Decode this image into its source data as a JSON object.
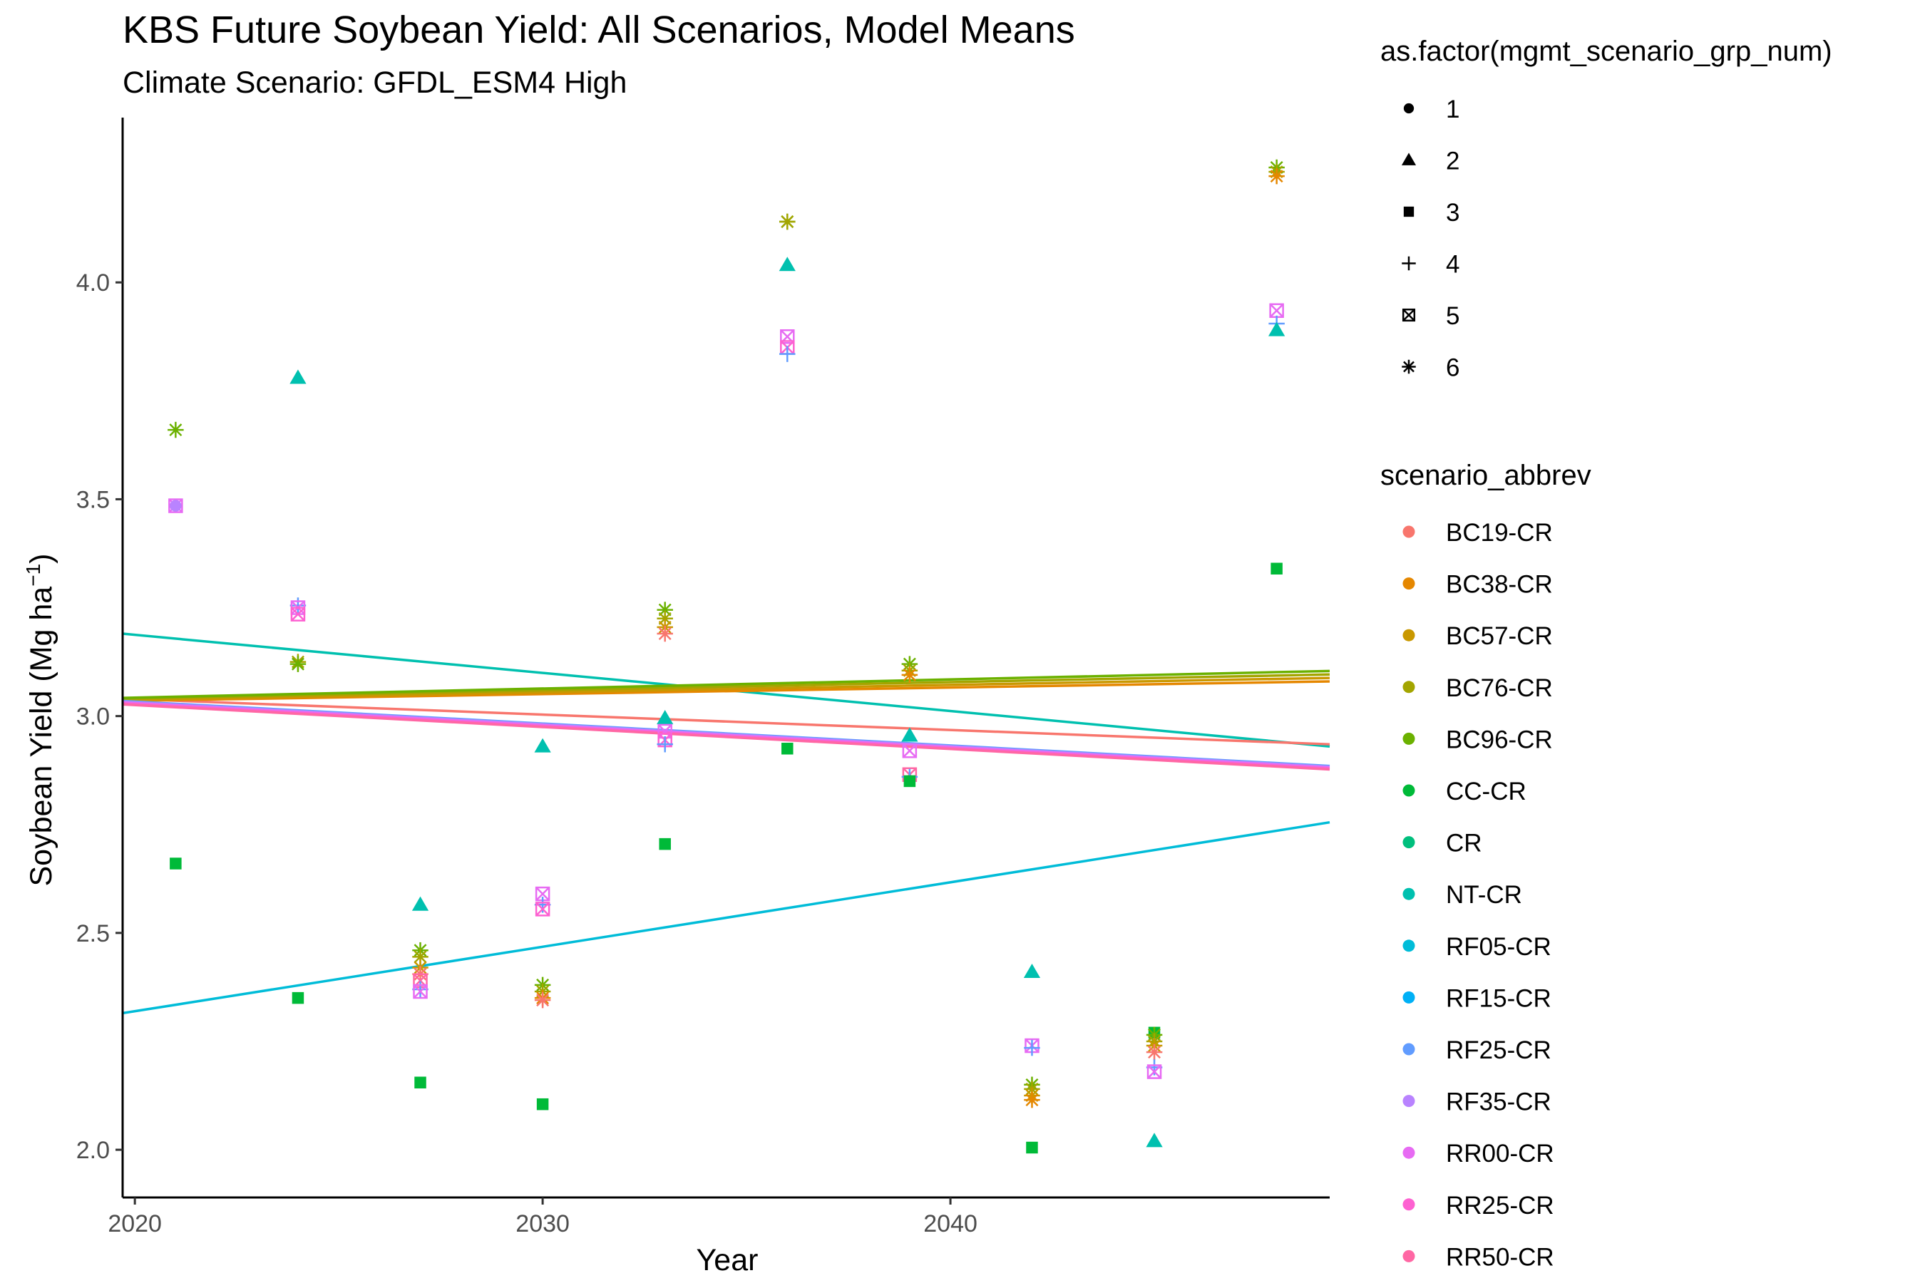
{
  "chart_data": {
    "type": "scatter",
    "title": "KBS  Future Soybean Yield: All Scenarios, Model Means",
    "subtitle": "Climate Scenario: GFDL_ESM4 High",
    "xlabel": "Year",
    "ylabel_main": "Soybean Yield (Mg ha",
    "ylabel_sup": "−1",
    "ylabel_close": ")",
    "xlim": [
      2019.7,
      2049.3
    ],
    "ylim": [
      1.89,
      4.38
    ],
    "x_ticks": [
      2020,
      2030,
      2040
    ],
    "y_ticks": [
      {
        "value": 2.0,
        "label": "2.0"
      },
      {
        "value": 2.5,
        "label": "2.5"
      },
      {
        "value": 3.0,
        "label": "3.0"
      },
      {
        "value": 3.5,
        "label": "3.5"
      },
      {
        "value": 4.0,
        "label": "4.0"
      }
    ],
    "grid": false,
    "legend_position": "right",
    "shape_legend": {
      "title": "as.factor(mgmt_scenario_grp_num)",
      "items": [
        {
          "label": "1",
          "shape": "circle"
        },
        {
          "label": "2",
          "shape": "triangle"
        },
        {
          "label": "3",
          "shape": "square"
        },
        {
          "label": "4",
          "shape": "plus"
        },
        {
          "label": "5",
          "shape": "square-cross"
        },
        {
          "label": "6",
          "shape": "asterisk"
        }
      ]
    },
    "color_legend": {
      "title": "scenario_abbrev",
      "items": [
        {
          "label": "BC19-CR",
          "color": "#F8766D"
        },
        {
          "label": "BC38-CR",
          "color": "#E58700"
        },
        {
          "label": "BC57-CR",
          "color": "#C99800"
        },
        {
          "label": "BC76-CR",
          "color": "#A3A500"
        },
        {
          "label": "BC96-CR",
          "color": "#6BB100"
        },
        {
          "label": "CC-CR",
          "color": "#00BA38"
        },
        {
          "label": "CR",
          "color": "#00BF7D"
        },
        {
          "label": "NT-CR",
          "color": "#00C0AF"
        },
        {
          "label": "RF05-CR",
          "color": "#00BCD8"
        },
        {
          "label": "RF15-CR",
          "color": "#00B0F6"
        },
        {
          "label": "RF25-CR",
          "color": "#619CFF"
        },
        {
          "label": "RF35-CR",
          "color": "#B983FF"
        },
        {
          "label": "RR00-CR",
          "color": "#E76BF3"
        },
        {
          "label": "RR25-CR",
          "color": "#FD61D1"
        },
        {
          "label": "RR50-CR",
          "color": "#FF67A4"
        }
      ]
    },
    "trend_lines": [
      {
        "color": "#00C0AF",
        "x": [
          2019.7,
          2049.3
        ],
        "y": [
          3.19,
          2.93
        ]
      },
      {
        "color": "#00BCD8",
        "x": [
          2019.7,
          2049.3
        ],
        "y": [
          2.315,
          2.755
        ]
      },
      {
        "color": "#F8766D",
        "x": [
          2019.7,
          2049.3
        ],
        "y": [
          3.04,
          2.935
        ]
      },
      {
        "color": "#E58700",
        "x": [
          2019.7,
          2049.3
        ],
        "y": [
          3.035,
          3.08
        ]
      },
      {
        "color": "#C99800",
        "x": [
          2019.7,
          2049.3
        ],
        "y": [
          3.037,
          3.088
        ]
      },
      {
        "color": "#A3A500",
        "x": [
          2019.7,
          2049.3
        ],
        "y": [
          3.04,
          3.096
        ]
      },
      {
        "color": "#6BB100",
        "x": [
          2019.7,
          2049.3
        ],
        "y": [
          3.042,
          3.104
        ]
      },
      {
        "color": "#619CFF",
        "x": [
          2019.7,
          2049.3
        ],
        "y": [
          3.035,
          2.885
        ]
      },
      {
        "color": "#B983FF",
        "x": [
          2019.7,
          2049.3
        ],
        "y": [
          3.033,
          2.883
        ]
      },
      {
        "color": "#E76BF3",
        "x": [
          2019.7,
          2049.3
        ],
        "y": [
          3.031,
          2.881
        ]
      },
      {
        "color": "#FD61D1",
        "x": [
          2019.7,
          2049.3
        ],
        "y": [
          3.029,
          2.879
        ]
      },
      {
        "color": "#FF67A4",
        "x": [
          2019.7,
          2049.3
        ],
        "y": [
          3.027,
          2.877
        ]
      }
    ],
    "points": [
      {
        "x": 2021,
        "y": 3.66,
        "shape": "asterisk",
        "color": "#6BB100"
      },
      {
        "x": 2021,
        "y": 3.485,
        "shape": "square-cross",
        "color": "#E76BF3"
      },
      {
        "x": 2021,
        "y": 3.485,
        "shape": "circle",
        "color": "#B983FF"
      },
      {
        "x": 2021,
        "y": 2.66,
        "shape": "square",
        "color": "#00BA38"
      },
      {
        "x": 2024,
        "y": 3.78,
        "shape": "triangle",
        "color": "#00C0AF"
      },
      {
        "x": 2024,
        "y": 3.255,
        "shape": "plus",
        "color": "#619CFF"
      },
      {
        "x": 2024,
        "y": 3.25,
        "shape": "square-cross",
        "color": "#E76BF3"
      },
      {
        "x": 2024,
        "y": 3.235,
        "shape": "square-cross",
        "color": "#FD61D1"
      },
      {
        "x": 2024,
        "y": 3.125,
        "shape": "asterisk",
        "color": "#A3A500"
      },
      {
        "x": 2024,
        "y": 3.12,
        "shape": "asterisk",
        "color": "#6BB100"
      },
      {
        "x": 2024,
        "y": 2.35,
        "shape": "square",
        "color": "#00BA38"
      },
      {
        "x": 2027,
        "y": 2.565,
        "shape": "triangle",
        "color": "#00C0AF"
      },
      {
        "x": 2027,
        "y": 2.46,
        "shape": "asterisk",
        "color": "#6BB100"
      },
      {
        "x": 2027,
        "y": 2.445,
        "shape": "asterisk",
        "color": "#A3A500"
      },
      {
        "x": 2027,
        "y": 2.42,
        "shape": "asterisk",
        "color": "#C99800"
      },
      {
        "x": 2027,
        "y": 2.405,
        "shape": "asterisk",
        "color": "#F8766D"
      },
      {
        "x": 2027,
        "y": 2.39,
        "shape": "square-cross",
        "color": "#FF67A4"
      },
      {
        "x": 2027,
        "y": 2.37,
        "shape": "plus",
        "color": "#619CFF"
      },
      {
        "x": 2027,
        "y": 2.365,
        "shape": "square-cross",
        "color": "#E76BF3"
      },
      {
        "x": 2027,
        "y": 2.155,
        "shape": "square",
        "color": "#00BA38"
      },
      {
        "x": 2030,
        "y": 2.93,
        "shape": "triangle",
        "color": "#00C0AF"
      },
      {
        "x": 2030,
        "y": 2.59,
        "shape": "square-cross",
        "color": "#E76BF3"
      },
      {
        "x": 2030,
        "y": 2.565,
        "shape": "plus",
        "color": "#619CFF"
      },
      {
        "x": 2030,
        "y": 2.555,
        "shape": "square-cross",
        "color": "#FD61D1"
      },
      {
        "x": 2030,
        "y": 2.38,
        "shape": "asterisk",
        "color": "#6BB100"
      },
      {
        "x": 2030,
        "y": 2.365,
        "shape": "asterisk",
        "color": "#A3A500"
      },
      {
        "x": 2030,
        "y": 2.35,
        "shape": "asterisk",
        "color": "#E58700"
      },
      {
        "x": 2030,
        "y": 2.345,
        "shape": "asterisk",
        "color": "#F8766D"
      },
      {
        "x": 2030,
        "y": 2.105,
        "shape": "square",
        "color": "#00BA38"
      },
      {
        "x": 2033,
        "y": 3.245,
        "shape": "asterisk",
        "color": "#6BB100"
      },
      {
        "x": 2033,
        "y": 3.225,
        "shape": "asterisk",
        "color": "#A3A500"
      },
      {
        "x": 2033,
        "y": 3.205,
        "shape": "asterisk",
        "color": "#C99800"
      },
      {
        "x": 2033,
        "y": 3.19,
        "shape": "asterisk",
        "color": "#F8766D"
      },
      {
        "x": 2033,
        "y": 2.995,
        "shape": "triangle",
        "color": "#00C0AF"
      },
      {
        "x": 2033,
        "y": 2.965,
        "shape": "square-cross",
        "color": "#E76BF3"
      },
      {
        "x": 2033,
        "y": 2.945,
        "shape": "square-cross",
        "color": "#FD61D1"
      },
      {
        "x": 2033,
        "y": 2.935,
        "shape": "plus",
        "color": "#619CFF"
      },
      {
        "x": 2033,
        "y": 2.705,
        "shape": "square",
        "color": "#00BA38"
      },
      {
        "x": 2036,
        "y": 4.14,
        "shape": "asterisk",
        "color": "#6BB100"
      },
      {
        "x": 2036,
        "y": 4.14,
        "shape": "asterisk",
        "color": "#A3A500"
      },
      {
        "x": 2036,
        "y": 4.04,
        "shape": "triangle",
        "color": "#00C0AF"
      },
      {
        "x": 2036,
        "y": 3.875,
        "shape": "square-cross",
        "color": "#E76BF3"
      },
      {
        "x": 2036,
        "y": 3.85,
        "shape": "square-cross",
        "color": "#FD61D1"
      },
      {
        "x": 2036,
        "y": 3.835,
        "shape": "plus",
        "color": "#619CFF"
      },
      {
        "x": 2036,
        "y": 2.925,
        "shape": "square",
        "color": "#00BA38"
      },
      {
        "x": 2039,
        "y": 3.12,
        "shape": "asterisk",
        "color": "#6BB100"
      },
      {
        "x": 2039,
        "y": 3.105,
        "shape": "asterisk",
        "color": "#A3A500"
      },
      {
        "x": 2039,
        "y": 3.095,
        "shape": "asterisk",
        "color": "#E58700"
      },
      {
        "x": 2039,
        "y": 2.955,
        "shape": "triangle",
        "color": "#00C0AF"
      },
      {
        "x": 2039,
        "y": 2.92,
        "shape": "square-cross",
        "color": "#E76BF3"
      },
      {
        "x": 2039,
        "y": 2.865,
        "shape": "square-cross",
        "color": "#FF67A4"
      },
      {
        "x": 2039,
        "y": 2.86,
        "shape": "plus",
        "color": "#619CFF"
      },
      {
        "x": 2039,
        "y": 2.85,
        "shape": "square",
        "color": "#00BA38"
      },
      {
        "x": 2042,
        "y": 2.41,
        "shape": "triangle",
        "color": "#00C0AF"
      },
      {
        "x": 2042,
        "y": 2.24,
        "shape": "square-cross",
        "color": "#E76BF3"
      },
      {
        "x": 2042,
        "y": 2.235,
        "shape": "plus",
        "color": "#619CFF"
      },
      {
        "x": 2042,
        "y": 2.15,
        "shape": "asterisk",
        "color": "#6BB100"
      },
      {
        "x": 2042,
        "y": 2.14,
        "shape": "asterisk",
        "color": "#A3A500"
      },
      {
        "x": 2042,
        "y": 2.125,
        "shape": "asterisk",
        "color": "#C99800"
      },
      {
        "x": 2042,
        "y": 2.115,
        "shape": "asterisk",
        "color": "#E58700"
      },
      {
        "x": 2042,
        "y": 2.005,
        "shape": "square",
        "color": "#00BA38"
      },
      {
        "x": 2045,
        "y": 2.27,
        "shape": "square",
        "color": "#00BA38"
      },
      {
        "x": 2045,
        "y": 2.265,
        "shape": "asterisk",
        "color": "#6BB100"
      },
      {
        "x": 2045,
        "y": 2.25,
        "shape": "asterisk",
        "color": "#A3A500"
      },
      {
        "x": 2045,
        "y": 2.24,
        "shape": "asterisk",
        "color": "#C99800"
      },
      {
        "x": 2045,
        "y": 2.225,
        "shape": "asterisk",
        "color": "#F8766D"
      },
      {
        "x": 2045,
        "y": 2.19,
        "shape": "plus",
        "color": "#619CFF"
      },
      {
        "x": 2045,
        "y": 2.18,
        "shape": "square-cross",
        "color": "#E76BF3"
      },
      {
        "x": 2045,
        "y": 2.02,
        "shape": "triangle",
        "color": "#00C0AF"
      },
      {
        "x": 2048,
        "y": 4.265,
        "shape": "asterisk",
        "color": "#6BB100"
      },
      {
        "x": 2048,
        "y": 4.255,
        "shape": "asterisk",
        "color": "#A3A500"
      },
      {
        "x": 2048,
        "y": 4.245,
        "shape": "asterisk",
        "color": "#E58700"
      },
      {
        "x": 2048,
        "y": 3.935,
        "shape": "square-cross",
        "color": "#E76BF3"
      },
      {
        "x": 2048,
        "y": 3.905,
        "shape": "plus",
        "color": "#619CFF"
      },
      {
        "x": 2048,
        "y": 3.89,
        "shape": "triangle",
        "color": "#00C0AF"
      },
      {
        "x": 2048,
        "y": 3.34,
        "shape": "square",
        "color": "#00BA38"
      }
    ]
  }
}
